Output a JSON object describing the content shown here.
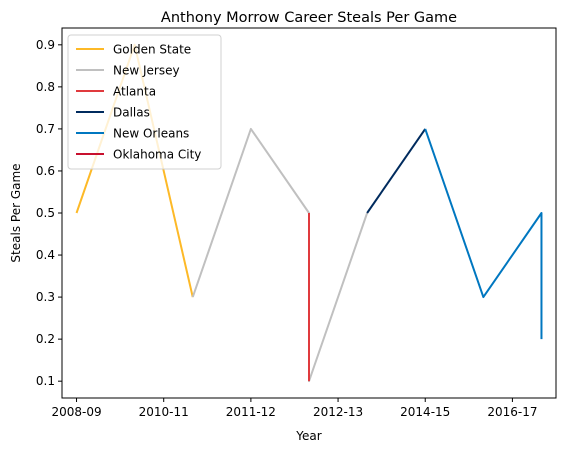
{
  "chart_data": {
    "type": "line",
    "title": "Anthony Morrow Career Steals Per Game",
    "xlabel": "Year",
    "ylabel": "Steals Per Game",
    "x_ticks": [
      "2008-09",
      "2010-11",
      "2011-12",
      "2012-13",
      "2014-15",
      "2016-17"
    ],
    "xlim": [
      -0.25,
      8.25
    ],
    "ylim": [
      0.06,
      0.94
    ],
    "y_ticks": [
      0.1,
      0.2,
      0.3,
      0.4,
      0.5,
      0.6,
      0.7,
      0.8,
      0.9
    ],
    "grid": false,
    "legend_position": "top-left",
    "series": [
      {
        "name": "Golden State",
        "color": "#FDB927",
        "points": [
          [
            0,
            0.5
          ],
          [
            1,
            0.9
          ],
          [
            2,
            0.3
          ]
        ]
      },
      {
        "name": "New Jersey",
        "color": "#C0C0C0",
        "points": [
          [
            2,
            0.3
          ],
          [
            3,
            0.7
          ],
          [
            4,
            0.5
          ],
          [
            4,
            0.1
          ],
          [
            5,
            0.5
          ]
        ]
      },
      {
        "name": "Atlanta",
        "color": "#E03A3E",
        "points": [
          [
            4,
            0.5
          ],
          [
            4,
            0.1
          ]
        ]
      },
      {
        "name": "Dallas",
        "color": "#002B5E",
        "points": [
          [
            5,
            0.5
          ],
          [
            6,
            0.7
          ]
        ]
      },
      {
        "name": "New Orleans",
        "color": "#0077C0",
        "points": [
          [
            6,
            0.7
          ],
          [
            7,
            0.3
          ],
          [
            8,
            0.5
          ],
          [
            8,
            0.2
          ]
        ]
      },
      {
        "name": "Oklahoma City",
        "color": "#C8102E",
        "points": []
      }
    ]
  }
}
